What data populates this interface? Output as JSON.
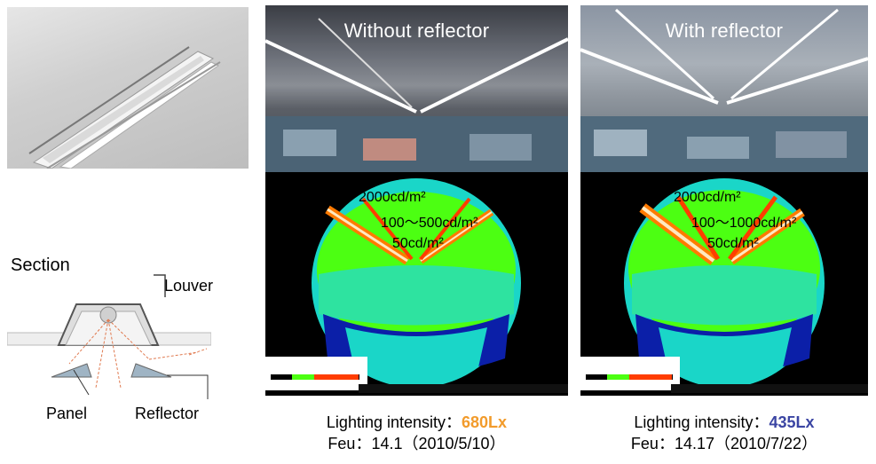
{
  "colors": {
    "value_without": "#f29b2b",
    "value_with": "#3b45a3",
    "fisheye_green": "#4cff12",
    "fisheye_cyan": "#1ad6c8",
    "fisheye_blue": "#0b1fa8",
    "fisheye_orange": "#ff7a00"
  },
  "left": {
    "section_title": "Section",
    "louver_label": "Louver",
    "panel_label": "Panel",
    "reflector_label": "Reflector"
  },
  "without": {
    "photo_title": "Without reflector",
    "label_2000": "2000cd/m²",
    "label_range": "100～500cd/m²",
    "label_50": "50cd/m²",
    "intensity_prefix": "Lighting intensity：",
    "intensity_value": "680Lx",
    "feu_line": "Feu：14.1（2010/5/10）"
  },
  "with": {
    "photo_title": "With reflector",
    "label_2000": "2000cd/m²",
    "label_range": "100～1000cd/m²",
    "label_50": "50cd/m²",
    "intensity_prefix": "Lighting intensity：",
    "intensity_value": "435Lx",
    "feu_line": "Feu：14.17（2010/7/22）"
  }
}
